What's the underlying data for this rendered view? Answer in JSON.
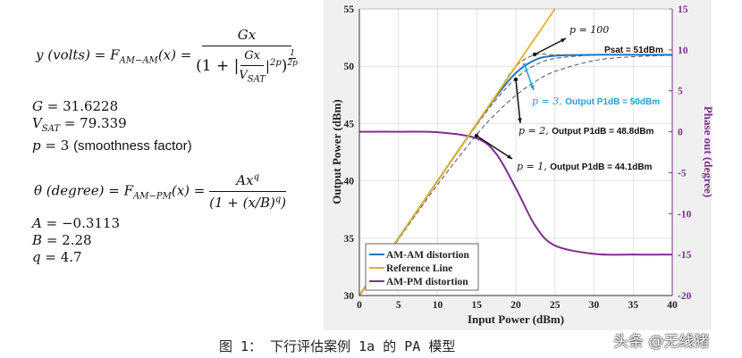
{
  "equations": {
    "amam": {
      "lhs": "y (volts) = F",
      "lhs_sub": "AM−AM",
      "arg": "(x) =",
      "num": "Gx",
      "den_open": "(1 + |",
      "den_num": "Gx",
      "den_den": "V",
      "den_den_sub": "SAT",
      "den_abs_exp": "2p",
      "den_close": ")",
      "outer_exp_num": "1",
      "outer_exp_den": "2p"
    },
    "amam_params": [
      {
        "name": "G",
        "value": "= 31.6228",
        "note": ""
      },
      {
        "name": "V",
        "sub": "SAT",
        "value": "= 79.339",
        "note": ""
      },
      {
        "name": "p",
        "value": "= 3",
        "note": "(smoothness factor)"
      }
    ],
    "ampm": {
      "lhs": "θ (degree) = F",
      "lhs_sub": "AM−PM",
      "arg": "(x) =",
      "num": "Ax",
      "num_exp": "q",
      "den": "(1 + (x/B)",
      "den_exp": "q",
      "den_close": ")"
    },
    "ampm_params": [
      {
        "name": "A",
        "value": "= −0.3113"
      },
      {
        "name": "B",
        "value": "= 2.28"
      },
      {
        "name": "q",
        "value": " = 4.7"
      }
    ]
  },
  "chart_data": {
    "type": "line",
    "xlabel": "Input Power (dBm)",
    "ylabel": "Output Power (dBm)",
    "y2label": "Phase out (degree)",
    "xlim": [
      0,
      40
    ],
    "ylim": [
      30,
      55
    ],
    "y2lim": [
      -20,
      15
    ],
    "xticks": [
      0,
      5,
      10,
      15,
      20,
      25,
      30,
      35,
      40
    ],
    "yticks": [
      30,
      35,
      40,
      45,
      50,
      55
    ],
    "y2ticks": [
      -20,
      -15,
      -10,
      -5,
      0,
      5,
      10,
      15
    ],
    "grid": true,
    "legend_position": "bottom-left",
    "x": [
      0,
      5,
      10,
      15,
      17.5,
      20,
      22.5,
      25,
      30,
      35,
      40
    ],
    "series": [
      {
        "name": "AM-AM distortion",
        "axis": "left",
        "color": "#1f77c4",
        "style": "solid",
        "values": [
          30,
          35,
          40,
          44.98,
          47.38,
          49.41,
          50.56,
          50.91,
          51.0,
          51.0,
          51.0
        ]
      },
      {
        "name": "AM-PM distortion",
        "axis": "right",
        "color": "#7e2f8e",
        "style": "solid",
        "values": [
          0,
          0,
          -0.06,
          -0.81,
          -2.7,
          -6.89,
          -11.5,
          -13.9,
          -14.92,
          -15,
          -15
        ]
      },
      {
        "axis": "left",
        "color": "#555555",
        "style": "dashed",
        "values": [
          29.97,
          34.89,
          39.67,
          44.03,
          45.9,
          47.46,
          48.67,
          49.55,
          50.49,
          50.83,
          50.95
        ]
      },
      {
        "axis": "left",
        "color": "#555555",
        "style": "dashed",
        "values": [
          30,
          35,
          39.99,
          44.87,
          47.1,
          48.94,
          50.11,
          50.68,
          50.97,
          51.0,
          51.0
        ]
      },
      {
        "axis": "left",
        "color": "#555555",
        "style": "dashed",
        "values": [
          30,
          35,
          40,
          44.98,
          47.38,
          49.41,
          50.56,
          50.91,
          51.0,
          51.0,
          51.0
        ]
      },
      {
        "axis": "left",
        "color": "#555555",
        "style": "dashed",
        "values": [
          30,
          35,
          40,
          45,
          47.5,
          50,
          51,
          51,
          51,
          51,
          51
        ]
      }
    ],
    "reference_line": {
      "name": "Reference Line",
      "color": "#e8b020",
      "x": [
        0,
        25
      ],
      "values": [
        30,
        55
      ]
    },
    "annotations": [
      {
        "label": "p = 100",
        "detail": "",
        "color": "#111111"
      },
      {
        "label": "",
        "detail": "Psat = 51dBm",
        "color": "#111111"
      },
      {
        "label": "p = 3,",
        "detail": "Output P1dB = 50dBm",
        "color": "#1fa0d8"
      },
      {
        "label": "p = 2,",
        "detail": "Output P1dB = 48.8dBm",
        "color": "#111111"
      },
      {
        "label": "p = 1,",
        "detail": "Output P1dB = 44.1dBm",
        "color": "#111111"
      }
    ]
  },
  "caption": "图 1：    下行评估案例 1a 的 PA 模型",
  "watermark": "头条 @无线猪"
}
